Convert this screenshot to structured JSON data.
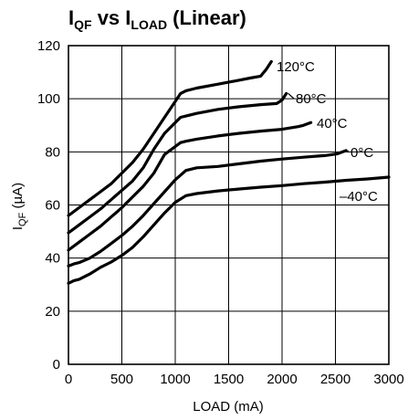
{
  "chart_data": {
    "type": "line",
    "title": {
      "main": "I",
      "main_sub": "QF",
      "mid": " vs I",
      "mid_sub": "LOAD",
      "end": " (Linear)"
    },
    "xlabel": "LOAD (mA)",
    "ylabel": {
      "main": "I",
      "sub": "QF",
      "end": " (µA)"
    },
    "xlim": [
      0,
      3000
    ],
    "ylim": [
      0,
      120
    ],
    "xticks": [
      0,
      500,
      1000,
      1500,
      2000,
      2500,
      3000
    ],
    "yticks": [
      0,
      20,
      40,
      60,
      80,
      100,
      120
    ],
    "xtick_labels": [
      "0",
      "500",
      "1000",
      "1500",
      "2000",
      "2500",
      "3000"
    ],
    "ytick_labels": [
      "0",
      "20",
      "40",
      "60",
      "80",
      "100",
      "120"
    ],
    "grid": true,
    "legend": "none",
    "series": [
      {
        "name": "120°C",
        "x": [
          0,
          100,
          200,
          300,
          400,
          500,
          600,
          700,
          800,
          900,
          1000,
          1050,
          1100,
          1200,
          1400,
          1600,
          1700,
          1800,
          1850,
          1900
        ],
        "y": [
          56,
          59,
          62,
          65,
          68,
          72,
          76,
          81,
          87,
          93,
          99,
          102,
          103,
          104,
          105.5,
          107,
          107.8,
          108.5,
          111,
          114
        ]
      },
      {
        "name": "80°C",
        "x": [
          0,
          100,
          200,
          300,
          400,
          500,
          600,
          700,
          800,
          900,
          1000,
          1050,
          1100,
          1200,
          1400,
          1600,
          1800,
          1950,
          2000,
          2040
        ],
        "y": [
          49.5,
          52.5,
          55.5,
          58.5,
          62,
          65.5,
          69,
          74,
          81,
          87,
          91,
          93,
          93.5,
          94.5,
          96,
          97,
          97.8,
          98.2,
          99.5,
          102
        ]
      },
      {
        "name": "40°C",
        "x": [
          0,
          100,
          200,
          300,
          400,
          500,
          600,
          700,
          800,
          900,
          1000,
          1050,
          1100,
          1200,
          1400,
          1600,
          1800,
          2000,
          2150,
          2200,
          2270
        ],
        "y": [
          43,
          46,
          49,
          52,
          55.5,
          59,
          63,
          67,
          72,
          79,
          82,
          83.5,
          84,
          84.8,
          86,
          87,
          87.8,
          88.5,
          89.5,
          90,
          91
        ]
      },
      {
        "name": "0°C",
        "x": [
          0,
          50,
          100,
          200,
          300,
          400,
          500,
          600,
          700,
          800,
          900,
          1000,
          1100,
          1200,
          1400,
          1600,
          1800,
          2000,
          2200,
          2400,
          2520,
          2600
        ],
        "y": [
          37,
          37.8,
          38.3,
          40,
          42.5,
          45.5,
          48.5,
          52,
          56,
          60.5,
          65,
          69.5,
          73,
          74,
          74.5,
          75.5,
          76.5,
          77.3,
          78,
          78.6,
          79.3,
          80.5
        ]
      },
      {
        "name": "–40°C",
        "x": [
          0,
          50,
          100,
          200,
          300,
          400,
          500,
          600,
          700,
          800,
          900,
          1000,
          1100,
          1200,
          1400,
          1600,
          1800,
          2000,
          2200,
          2400,
          2600,
          2800,
          3000
        ],
        "y": [
          30.5,
          31.5,
          32,
          34,
          36.5,
          38.5,
          41,
          44,
          48,
          52.5,
          57,
          61,
          63.5,
          64.3,
          65.3,
          66,
          66.7,
          67.3,
          68,
          68.6,
          69.3,
          69.8,
          70.5
        ]
      }
    ]
  }
}
